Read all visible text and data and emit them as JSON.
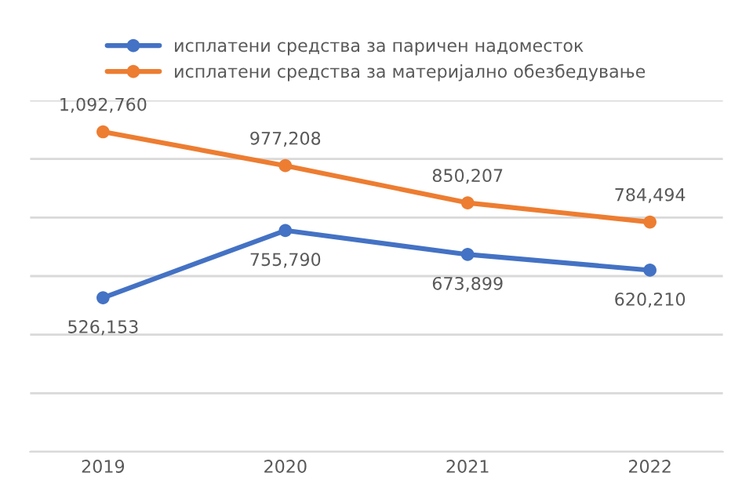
{
  "chart_data": {
    "type": "line",
    "categories": [
      "2019",
      "2020",
      "2021",
      "2022"
    ],
    "series": [
      {
        "name": "исплатени средства за паричен надоместок",
        "color": "#4472c4",
        "values": [
          526153,
          755790,
          673899,
          620210
        ],
        "value_labels": [
          "526,153",
          "755,790",
          "673,899",
          "620,210"
        ]
      },
      {
        "name": "исплатени средства за материјално обезбедување",
        "color": "#ed7d31",
        "values": [
          1092760,
          977208,
          850207,
          784494
        ],
        "value_labels": [
          "1,092,760",
          "977,208",
          "850,207",
          "784,494"
        ]
      }
    ],
    "ylim": [
      0,
      1200000
    ],
    "yticks": [
      {
        "value": 0,
        "label": null
      },
      {
        "value": 200000,
        "label": null
      },
      {
        "value": 400000,
        "label": null
      },
      {
        "value": 600000,
        "label": null
      },
      {
        "value": 800000,
        "label": null
      },
      {
        "value": 1000000,
        "label": null
      },
      {
        "value": 1200000,
        "label": null
      }
    ],
    "tick_labels": "x",
    "grid": "y",
    "legend": "top",
    "marker": "circle",
    "line_style": "solid"
  }
}
